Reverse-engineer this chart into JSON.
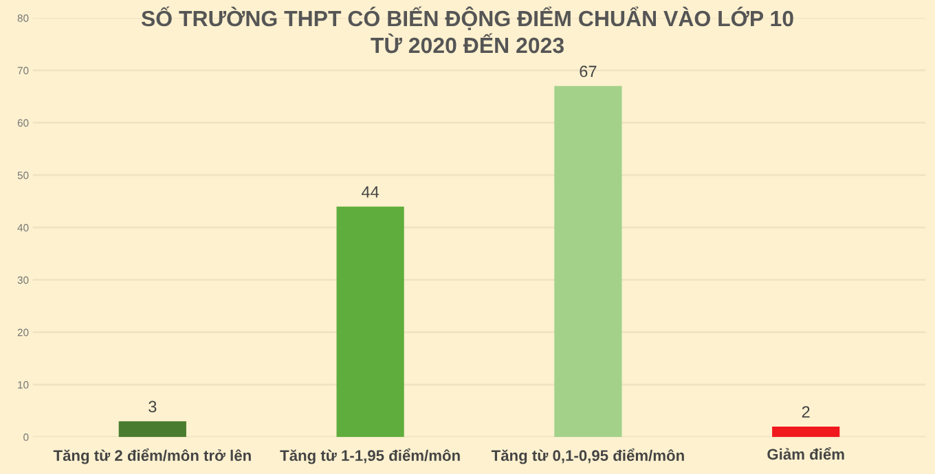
{
  "chart_data": {
    "type": "bar",
    "title": "SỐ TRƯỜNG THPT CÓ BIẾN ĐỘNG ĐIỂM CHUẨN VÀO LỚP 10\nTỪ 2020 ĐẾN 2023",
    "categories": [
      "Tăng từ 2 điểm/môn trở lên",
      "Tăng từ 1-1,95 điểm/môn",
      "Tăng từ 0,1-0,95 điểm/môn",
      "Giảm điểm"
    ],
    "values": [
      3,
      44,
      67,
      2
    ],
    "colors": [
      "#4a7c2f",
      "#5fad3c",
      "#a3d18a",
      "#f0191e"
    ],
    "ylim": [
      0,
      80
    ],
    "yticks": [
      0,
      10,
      20,
      30,
      40,
      50,
      60,
      70,
      80
    ],
    "grid": "y",
    "data_labels": true
  }
}
